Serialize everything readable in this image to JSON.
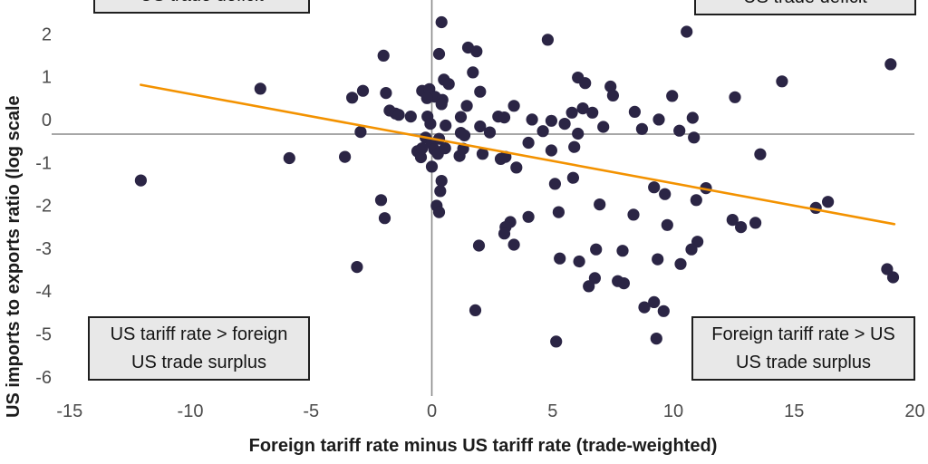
{
  "chart_data": {
    "type": "scatter",
    "xlabel": "Foreign tariff rate minus US tariff rate (trade-weighted)",
    "ylabel": "US imports to exports ratio (log scale",
    "x_ticks": [
      -15,
      -10,
      -5,
      0,
      5,
      10,
      15,
      20
    ],
    "y_ticks": [
      2,
      1,
      0,
      -1,
      -2,
      -3,
      -4,
      -5,
      -6
    ],
    "xlim": [
      -15.6,
      20.6
    ],
    "ylim": [
      -6.9,
      3.1
    ],
    "grid": "off",
    "reference_lines": {
      "vertical_at_x": 0,
      "horizontal_at_y": 0
    },
    "legend": "none",
    "quadrant_labels": {
      "top_left": [
        "US trade deficit"
      ],
      "top_right": [
        "US trade deficit"
      ],
      "bottom_left": [
        "US tariff rate > foreign",
        "US trade surplus"
      ],
      "bottom_right": [
        "Foreign tariff rate > US",
        "US trade surplus"
      ]
    },
    "trendline": {
      "x1": -12.05,
      "y1": 1.15,
      "x2": 19.15,
      "y2": -2.1
    },
    "colors": {
      "point": "#2b2545",
      "trend": "#f39200",
      "axis_line": "#8a8a8a",
      "tick_text": "#4b4b4b",
      "box_bg": "#e8e8e8",
      "box_border": "#1f1f1f"
    },
    "points": [
      [
        -7.1,
        1.06
      ],
      [
        -12.05,
        -1.08
      ],
      [
        -5.9,
        -0.56
      ],
      [
        -3.6,
        -0.53
      ],
      [
        -2.95,
        0.05
      ],
      [
        -3.1,
        -3.1
      ],
      [
        0.4,
        2.61
      ],
      [
        4.8,
        2.2
      ],
      [
        10.55,
        2.39
      ],
      [
        -2.0,
        1.83
      ],
      [
        0.3,
        1.87
      ],
      [
        1.5,
        2.02
      ],
      [
        1.85,
        1.93
      ],
      [
        1.7,
        1.44
      ],
      [
        0.5,
        1.27
      ],
      [
        0.7,
        1.17
      ],
      [
        2.0,
        0.99
      ],
      [
        19.0,
        1.63
      ],
      [
        14.5,
        1.23
      ],
      [
        12.55,
        0.86
      ],
      [
        9.95,
        0.89
      ],
      [
        -2.85,
        1.01
      ],
      [
        -3.3,
        0.85
      ],
      [
        -1.9,
        0.96
      ],
      [
        -0.4,
        1.01
      ],
      [
        -0.1,
        1.05
      ],
      [
        0.13,
        0.87
      ],
      [
        -0.2,
        0.84
      ],
      [
        0.44,
        0.8
      ],
      [
        0.4,
        0.7
      ],
      [
        1.45,
        0.66
      ],
      [
        -1.75,
        0.55
      ],
      [
        -1.5,
        0.48
      ],
      [
        -0.87,
        0.41
      ],
      [
        -1.37,
        0.45
      ],
      [
        -0.18,
        0.41
      ],
      [
        -0.06,
        0.24
      ],
      [
        0.57,
        0.2
      ],
      [
        1.2,
        0.4
      ],
      [
        2.0,
        0.18
      ],
      [
        2.4,
        0.04
      ],
      [
        1.2,
        0.03
      ],
      [
        1.35,
        -0.03
      ],
      [
        2.75,
        0.41
      ],
      [
        3.4,
        0.66
      ],
      [
        3.0,
        0.39
      ],
      [
        4.15,
        0.34
      ],
      [
        4.95,
        0.31
      ],
      [
        5.5,
        0.24
      ],
      [
        4.6,
        0.07
      ],
      [
        6.05,
        0.01
      ],
      [
        7.1,
        0.17
      ],
      [
        5.8,
        0.5
      ],
      [
        6.25,
        0.6
      ],
      [
        6.65,
        0.5
      ],
      [
        6.05,
        1.32
      ],
      [
        6.35,
        1.19
      ],
      [
        7.4,
        1.11
      ],
      [
        7.5,
        0.9
      ],
      [
        8.4,
        0.52
      ],
      [
        8.7,
        0.12
      ],
      [
        9.4,
        0.34
      ],
      [
        10.8,
        0.38
      ],
      [
        10.25,
        0.08
      ],
      [
        10.85,
        -0.08
      ],
      [
        -0.26,
        -0.08
      ],
      [
        0.3,
        -0.11
      ],
      [
        0.0,
        -0.22
      ],
      [
        -0.6,
        -0.4
      ],
      [
        -0.45,
        -0.54
      ],
      [
        -0.4,
        -0.33
      ],
      [
        0.1,
        -0.36
      ],
      [
        0.25,
        -0.46
      ],
      [
        0.55,
        -0.33
      ],
      [
        1.15,
        -0.51
      ],
      [
        1.3,
        -0.34
      ],
      [
        2.1,
        -0.46
      ],
      [
        0.0,
        -0.76
      ],
      [
        2.85,
        -0.58
      ],
      [
        3.05,
        -0.53
      ],
      [
        3.5,
        -0.78
      ],
      [
        4.0,
        -0.2
      ],
      [
        4.95,
        -0.38
      ],
      [
        5.9,
        -0.3
      ],
      [
        13.6,
        -0.47
      ],
      [
        5.1,
        -1.16
      ],
      [
        5.85,
        -1.02
      ],
      [
        -2.1,
        -1.54
      ],
      [
        -1.95,
        -1.96
      ],
      [
        0.2,
        -1.67
      ],
      [
        0.3,
        -1.82
      ],
      [
        0.4,
        -1.09
      ],
      [
        0.35,
        -1.33
      ],
      [
        3.25,
        -2.05
      ],
      [
        3.05,
        -2.17
      ],
      [
        4.0,
        -1.93
      ],
      [
        3.0,
        -2.32
      ],
      [
        1.95,
        -2.6
      ],
      [
        3.4,
        -2.58
      ],
      [
        5.25,
        -1.82
      ],
      [
        6.95,
        -1.64
      ],
      [
        8.35,
        -1.88
      ],
      [
        9.2,
        -1.24
      ],
      [
        9.65,
        -1.4
      ],
      [
        11.35,
        -1.26
      ],
      [
        10.95,
        -1.54
      ],
      [
        15.9,
        -1.72
      ],
      [
        16.4,
        -1.58
      ],
      [
        9.75,
        -2.12
      ],
      [
        12.45,
        -2.0
      ],
      [
        12.8,
        -2.17
      ],
      [
        13.4,
        -2.07
      ],
      [
        11.0,
        -2.51
      ],
      [
        10.75,
        -2.69
      ],
      [
        5.3,
        -2.9
      ],
      [
        6.1,
        -2.97
      ],
      [
        6.8,
        -2.69
      ],
      [
        7.9,
        -2.72
      ],
      [
        9.35,
        -2.92
      ],
      [
        10.3,
        -3.03
      ],
      [
        18.85,
        -3.15
      ],
      [
        19.1,
        -3.34
      ],
      [
        6.75,
        -3.36
      ],
      [
        6.5,
        -3.55
      ],
      [
        7.7,
        -3.43
      ],
      [
        7.95,
        -3.48
      ],
      [
        8.8,
        -4.04
      ],
      [
        9.2,
        -3.92
      ],
      [
        9.6,
        -4.13
      ],
      [
        9.3,
        -4.77
      ],
      [
        1.8,
        -4.11
      ],
      [
        5.15,
        -4.84
      ]
    ]
  }
}
